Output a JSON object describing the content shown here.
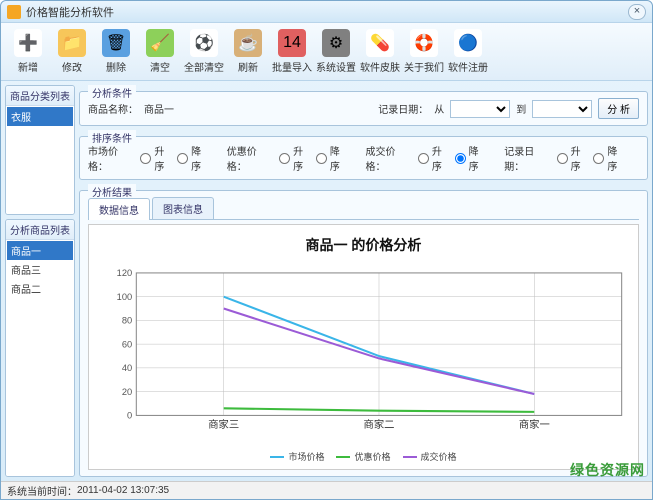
{
  "window": {
    "title": "价格智能分析软件"
  },
  "toolbar": [
    {
      "label": "新增",
      "icon": "➕",
      "bg": "#ffffff"
    },
    {
      "label": "修改",
      "icon": "📁",
      "bg": "#f7c65a"
    },
    {
      "label": "删除",
      "icon": "🗑",
      "bg": "#5aa0e0"
    },
    {
      "label": "清空",
      "icon": "🧹",
      "bg": "#8dd05a"
    },
    {
      "label": "全部清空",
      "icon": "⚽",
      "bg": "#ffffff"
    },
    {
      "label": "刷新",
      "icon": "☕",
      "bg": "#d8b078"
    },
    {
      "label": "批量导入",
      "icon": "14",
      "bg": "#e06060"
    },
    {
      "label": "系统设置",
      "icon": "⚙",
      "bg": "#808080"
    },
    {
      "label": "软件皮肤",
      "icon": "💊",
      "bg": "#ffffff"
    },
    {
      "label": "关于我们",
      "icon": "🛟",
      "bg": "#ffffff"
    },
    {
      "label": "软件注册",
      "icon": "🔵",
      "bg": "#ffffff"
    }
  ],
  "left": {
    "category_panel": "商品分类列表",
    "category_items": [
      {
        "label": "衣服",
        "selected": true
      }
    ],
    "product_panel": "分析商品列表",
    "product_items": [
      {
        "label": "商品一",
        "selected": true
      },
      {
        "label": "商品三",
        "selected": false
      },
      {
        "label": "商品二",
        "selected": false
      }
    ]
  },
  "filter": {
    "group_title": "分析条件",
    "name_label": "商品名称：",
    "name_value": "商品一",
    "date_label": "记录日期：",
    "from_label": "从",
    "to_label": "到",
    "analyze_btn": "分 析"
  },
  "sort": {
    "group_title": "排序条件",
    "market": "市场价格：",
    "discount": "优惠价格：",
    "deal": "成交价格：",
    "date": "记录日期：",
    "asc": "升序",
    "desc": "降序",
    "checked": "deal_desc"
  },
  "result": {
    "group_title": "分析结果",
    "tabs": [
      {
        "label": "数据信息",
        "active": true
      },
      {
        "label": "图表信息",
        "active": false
      }
    ]
  },
  "chart": {
    "title": "商品一 的价格分析",
    "categories": [
      "商家三",
      "商家二",
      "商家一"
    ],
    "ylim": [
      0,
      120
    ],
    "ytick_step": 20,
    "series": [
      {
        "name": "市场价格",
        "color": "#3ab5e8",
        "values": [
          100,
          50,
          18
        ]
      },
      {
        "name": "优惠价格",
        "color": "#3dbb3d",
        "values": [
          6,
          4,
          3
        ]
      },
      {
        "name": "成交价格",
        "color": "#9b5bd6",
        "values": [
          90,
          48,
          18
        ]
      }
    ],
    "grid_color": "#bfbfbf",
    "background": "#ffffff",
    "line_width": 2
  },
  "status": {
    "label": "系统当前时间：",
    "value": "2011-04-02 13:07:35"
  },
  "watermark": "绿色资源网"
}
